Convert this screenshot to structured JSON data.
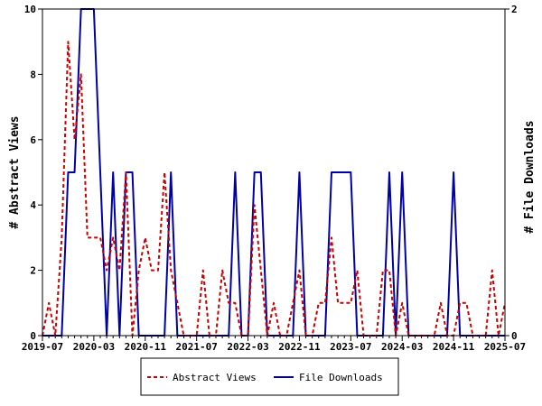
{
  "chart_data": {
    "type": "line",
    "x": [
      "2019-07",
      "2019-08",
      "2019-09",
      "2019-10",
      "2019-11",
      "2019-12",
      "2020-01",
      "2020-02",
      "2020-03",
      "2020-04",
      "2020-05",
      "2020-06",
      "2020-07",
      "2020-08",
      "2020-09",
      "2020-10",
      "2020-11",
      "2020-12",
      "2021-01",
      "2021-02",
      "2021-03",
      "2021-04",
      "2021-05",
      "2021-06",
      "2021-07",
      "2021-08",
      "2021-09",
      "2021-10",
      "2021-11",
      "2021-12",
      "2022-01",
      "2022-02",
      "2022-03",
      "2022-04",
      "2022-05",
      "2022-06",
      "2022-07",
      "2022-08",
      "2022-09",
      "2022-10",
      "2022-11",
      "2022-12",
      "2023-01",
      "2023-02",
      "2023-03",
      "2023-04",
      "2023-05",
      "2023-06",
      "2023-07",
      "2023-08",
      "2023-09",
      "2023-10",
      "2023-11",
      "2023-12",
      "2024-01",
      "2024-02",
      "2024-03",
      "2024-04",
      "2024-05",
      "2024-06",
      "2024-07",
      "2024-08",
      "2024-09",
      "2024-10",
      "2024-11",
      "2024-12",
      "2025-01",
      "2025-02",
      "2025-03",
      "2025-04",
      "2025-05",
      "2025-06",
      "2025-07"
    ],
    "x_ticks": [
      "2019-07",
      "2020-03",
      "2020-11",
      "2021-07",
      "2022-03",
      "2022-11",
      "2023-07",
      "2024-03",
      "2024-11",
      "2025-07"
    ],
    "series": [
      {
        "name": "Abstract Views",
        "axis": "left",
        "color": "#cc0000",
        "style": "dashed",
        "values": [
          0,
          1,
          0,
          3,
          9,
          6,
          8,
          3,
          3,
          3,
          2,
          3,
          2,
          5,
          0,
          2,
          3,
          2,
          2,
          5,
          2,
          1,
          0,
          0,
          0,
          2,
          0,
          0,
          2,
          1,
          1,
          0,
          0,
          4,
          2,
          0,
          1,
          0,
          0,
          1,
          2,
          0,
          0,
          1,
          1,
          3,
          1,
          1,
          1,
          2,
          0,
          0,
          0,
          2,
          2,
          0,
          1,
          0,
          0,
          0,
          0,
          0,
          1,
          0,
          0,
          1,
          1,
          0,
          0,
          0,
          2,
          0,
          1
        ]
      },
      {
        "name": "File Downloads",
        "axis": "right",
        "color": "#0000aa",
        "style": "solid",
        "values": [
          0,
          0,
          0,
          0,
          1,
          1,
          2,
          2,
          2,
          1,
          0,
          1,
          0,
          1,
          1,
          0,
          0,
          0,
          0,
          0,
          1,
          0,
          0,
          0,
          0,
          0,
          0,
          0,
          0,
          0,
          1,
          0,
          0,
          1,
          1,
          0,
          0,
          0,
          0,
          0,
          1,
          0,
          0,
          0,
          0,
          1,
          1,
          1,
          1,
          0,
          0,
          0,
          0,
          0,
          1,
          0,
          1,
          0,
          0,
          0,
          0,
          0,
          0,
          0,
          1,
          0,
          0,
          0,
          0,
          0,
          0,
          0,
          0
        ]
      }
    ],
    "ylabel": "# Abstract Views",
    "y2label": "# File Downloads",
    "ylim": [
      0,
      10
    ],
    "y_ticks": [
      0,
      2,
      4,
      6,
      8,
      10
    ],
    "y2lim": [
      0,
      2
    ],
    "y2_ticks": [
      0,
      2
    ],
    "grid": false,
    "legend": {
      "position": "bottom",
      "entries": [
        "Abstract Views",
        "File Downloads"
      ]
    }
  }
}
